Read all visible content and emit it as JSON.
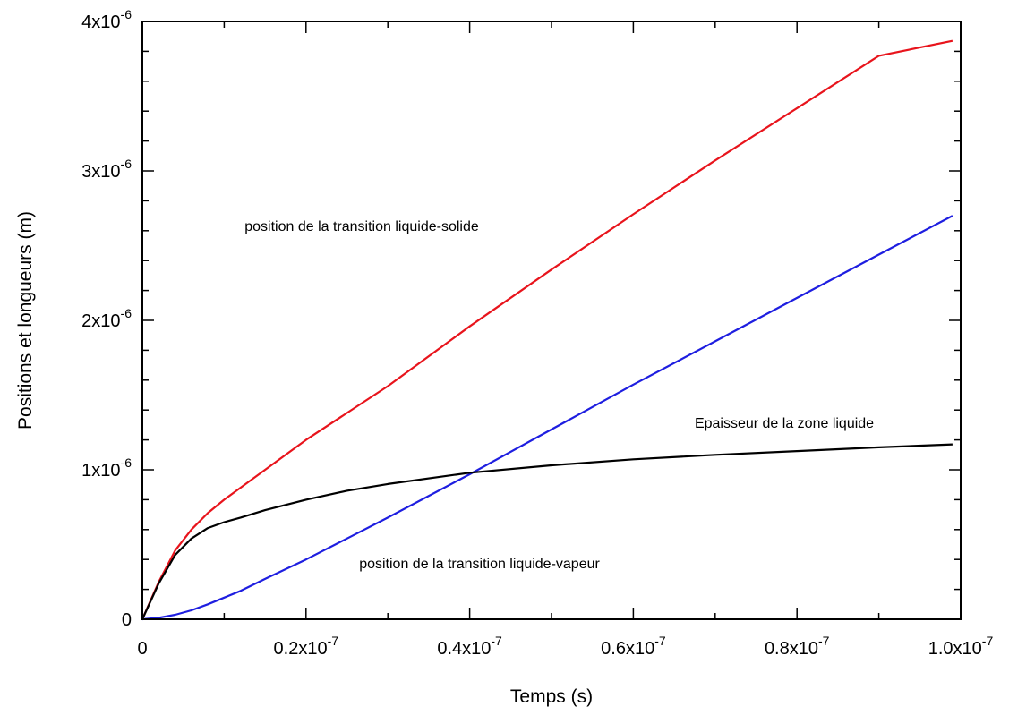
{
  "chart_data": {
    "type": "line",
    "title": "",
    "xlabel": "Temps (s)",
    "ylabel": "Positions et longueurs (m)",
    "xlim": [
      0,
      1e-07
    ],
    "ylim": [
      0,
      4e-06
    ],
    "grid": false,
    "x_ticks": [
      {
        "value": 0,
        "base": "0",
        "exp": ""
      },
      {
        "value": 2e-08,
        "base": "0.2x10",
        "exp": "-7"
      },
      {
        "value": 4e-08,
        "base": "0.4x10",
        "exp": "-7"
      },
      {
        "value": 6e-08,
        "base": "0.6x10",
        "exp": "-7"
      },
      {
        "value": 8e-08,
        "base": "0.8x10",
        "exp": "-7"
      },
      {
        "value": 1e-07,
        "base": "1.0x10",
        "exp": "-7"
      }
    ],
    "y_ticks": [
      {
        "value": 0,
        "base": "0",
        "exp": ""
      },
      {
        "value": 1e-06,
        "base": "1x10",
        "exp": "-6"
      },
      {
        "value": 2e-06,
        "base": "2x10",
        "exp": "-6"
      },
      {
        "value": 3e-06,
        "base": "3x10",
        "exp": "-6"
      },
      {
        "value": 4e-06,
        "base": "4x10",
        "exp": "-6"
      }
    ],
    "series": [
      {
        "color": "#e8141c",
        "x": [
          0,
          2e-09,
          4e-09,
          6e-09,
          8e-09,
          1e-08,
          1.2e-08,
          1.5e-08,
          2e-08,
          2.5e-08,
          3e-08,
          4e-08,
          5e-08,
          6e-08,
          7e-08,
          8e-08,
          9e-08,
          9.9e-08
        ],
        "y": [
          0,
          2.5e-07,
          4.6e-07,
          6e-07,
          7.1e-07,
          8e-07,
          8.8e-07,
          1e-06,
          1.2e-06,
          1.38e-06,
          1.56e-06,
          1.96e-06,
          2.34e-06,
          2.71e-06,
          3.07e-06,
          3.42e-06,
          3.77e-06,
          3.87e-06
        ]
      },
      {
        "color": "#1e1ee0",
        "x": [
          0,
          2e-09,
          4e-09,
          6e-09,
          8e-09,
          1e-08,
          1.2e-08,
          1.5e-08,
          2e-08,
          2.5e-08,
          3e-08,
          4e-08,
          5e-08,
          6e-08,
          7e-08,
          8e-08,
          9e-08,
          9.9e-08
        ],
        "y": [
          0,
          1e-08,
          3e-08,
          6e-08,
          1e-07,
          1.45e-07,
          1.9e-07,
          2.7e-07,
          4e-07,
          5.4e-07,
          6.8e-07,
          9.7e-07,
          1.27e-06,
          1.57e-06,
          1.86e-06,
          2.15e-06,
          2.44e-06,
          2.7e-06
        ]
      },
      {
        "color": "#000000",
        "x": [
          0,
          2e-09,
          4e-09,
          6e-09,
          8e-09,
          1e-08,
          1.2e-08,
          1.5e-08,
          2e-08,
          2.5e-08,
          3e-08,
          4e-08,
          5e-08,
          6e-08,
          7e-08,
          8e-08,
          9e-08,
          9.9e-08
        ],
        "y": [
          0,
          2.4e-07,
          4.3e-07,
          5.4e-07,
          6.1e-07,
          6.5e-07,
          6.8e-07,
          7.3e-07,
          8e-07,
          8.6e-07,
          9.05e-07,
          9.8e-07,
          1.03e-06,
          1.07e-06,
          1.1e-06,
          1.125e-06,
          1.15e-06,
          1.17e-06
        ]
      }
    ],
    "annotations": [
      {
        "text": "position de la transition liquide-solide",
        "x": 1.25e-08,
        "y": 2.6e-06
      },
      {
        "text": "Epaisseur de la zone liquide",
        "x": 6.75e-08,
        "y": 1.28e-06
      },
      {
        "text": "position de la transition liquide-vapeur",
        "x": 2.65e-08,
        "y": 3.4e-07
      }
    ]
  }
}
